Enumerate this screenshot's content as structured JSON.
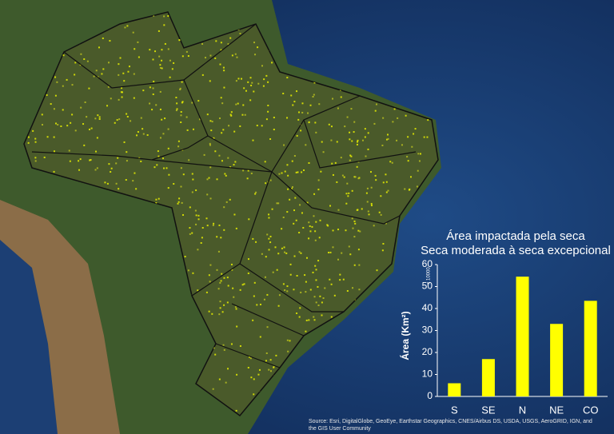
{
  "chart_data": {
    "type": "bar",
    "title": [
      "Área impactada pela seca",
      "Seca moderada à seca excepcional"
    ],
    "y_label": "Área (Km²)",
    "y_scale_note": "x 10000",
    "categories": [
      "S",
      "SE",
      "N",
      "NE",
      "CO"
    ],
    "values": [
      6,
      17,
      54.5,
      33,
      43.5
    ],
    "color": "#ffff00",
    "ylim": [
      0,
      60
    ],
    "yticks": [
      0,
      10,
      20,
      30,
      40,
      50,
      60
    ]
  },
  "source": [
    "Source: Esri, DigitalGlobe, GeoEye, Earthstar Geographics, CNES/Airbus DS, USDA, USGS, AeroGRID, IGN, and",
    "the GIS User Community"
  ]
}
